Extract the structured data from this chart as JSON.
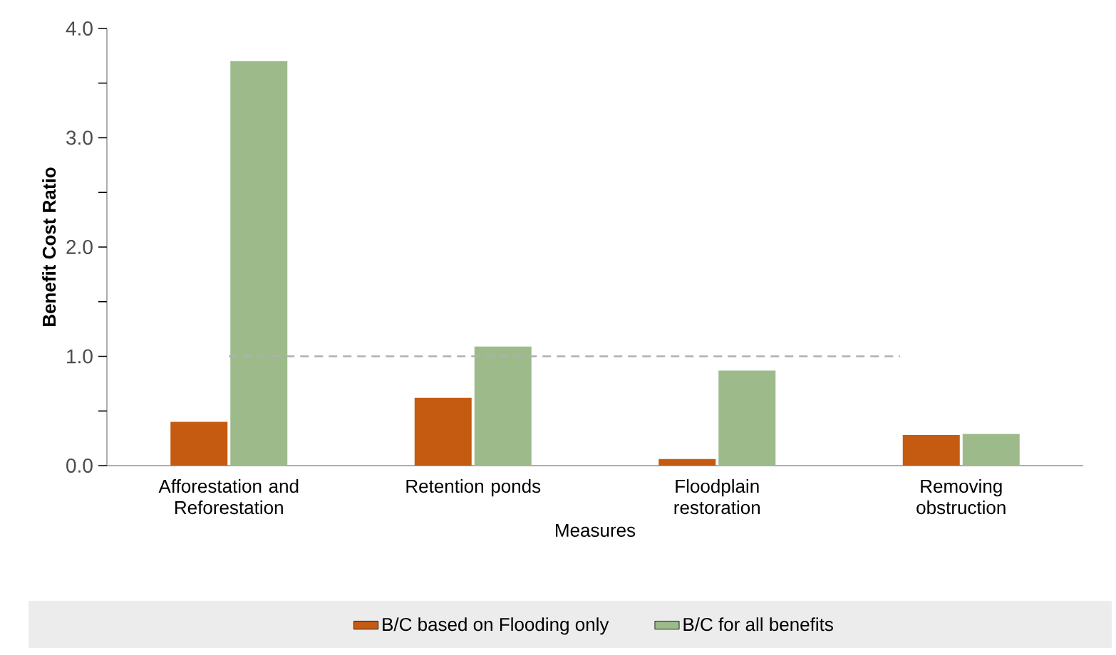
{
  "chart_data": {
    "type": "bar",
    "xlabel": "Measures",
    "ylabel": "Benefit Cost Ratio",
    "categories": [
      "Afforestation and Reforestation",
      "Retention ponds",
      "Floodplain restoration",
      "Removing obstruction"
    ],
    "series": [
      {
        "name": "B/C based on Flooding only",
        "color": "#c55a11",
        "values": [
          0.4,
          0.62,
          0.06,
          0.28
        ]
      },
      {
        "name": "B/C for all benefits",
        "color": "#9dbb8a",
        "values": [
          3.7,
          1.09,
          0.87,
          0.29
        ]
      }
    ],
    "ylim": [
      0,
      4
    ],
    "yticks": [
      {
        "value": 0,
        "label": "0.0"
      },
      {
        "value": 1,
        "label": "1.0"
      },
      {
        "value": 2,
        "label": "2.0"
      },
      {
        "value": 3,
        "label": "3.0"
      },
      {
        "value": 4,
        "label": "4.0"
      }
    ],
    "ref_lines": [
      {
        "axis": "y",
        "value": 1,
        "color": "#b0b0b0",
        "line_style": "dashed"
      }
    ],
    "grid": false,
    "legend": "bottom"
  }
}
